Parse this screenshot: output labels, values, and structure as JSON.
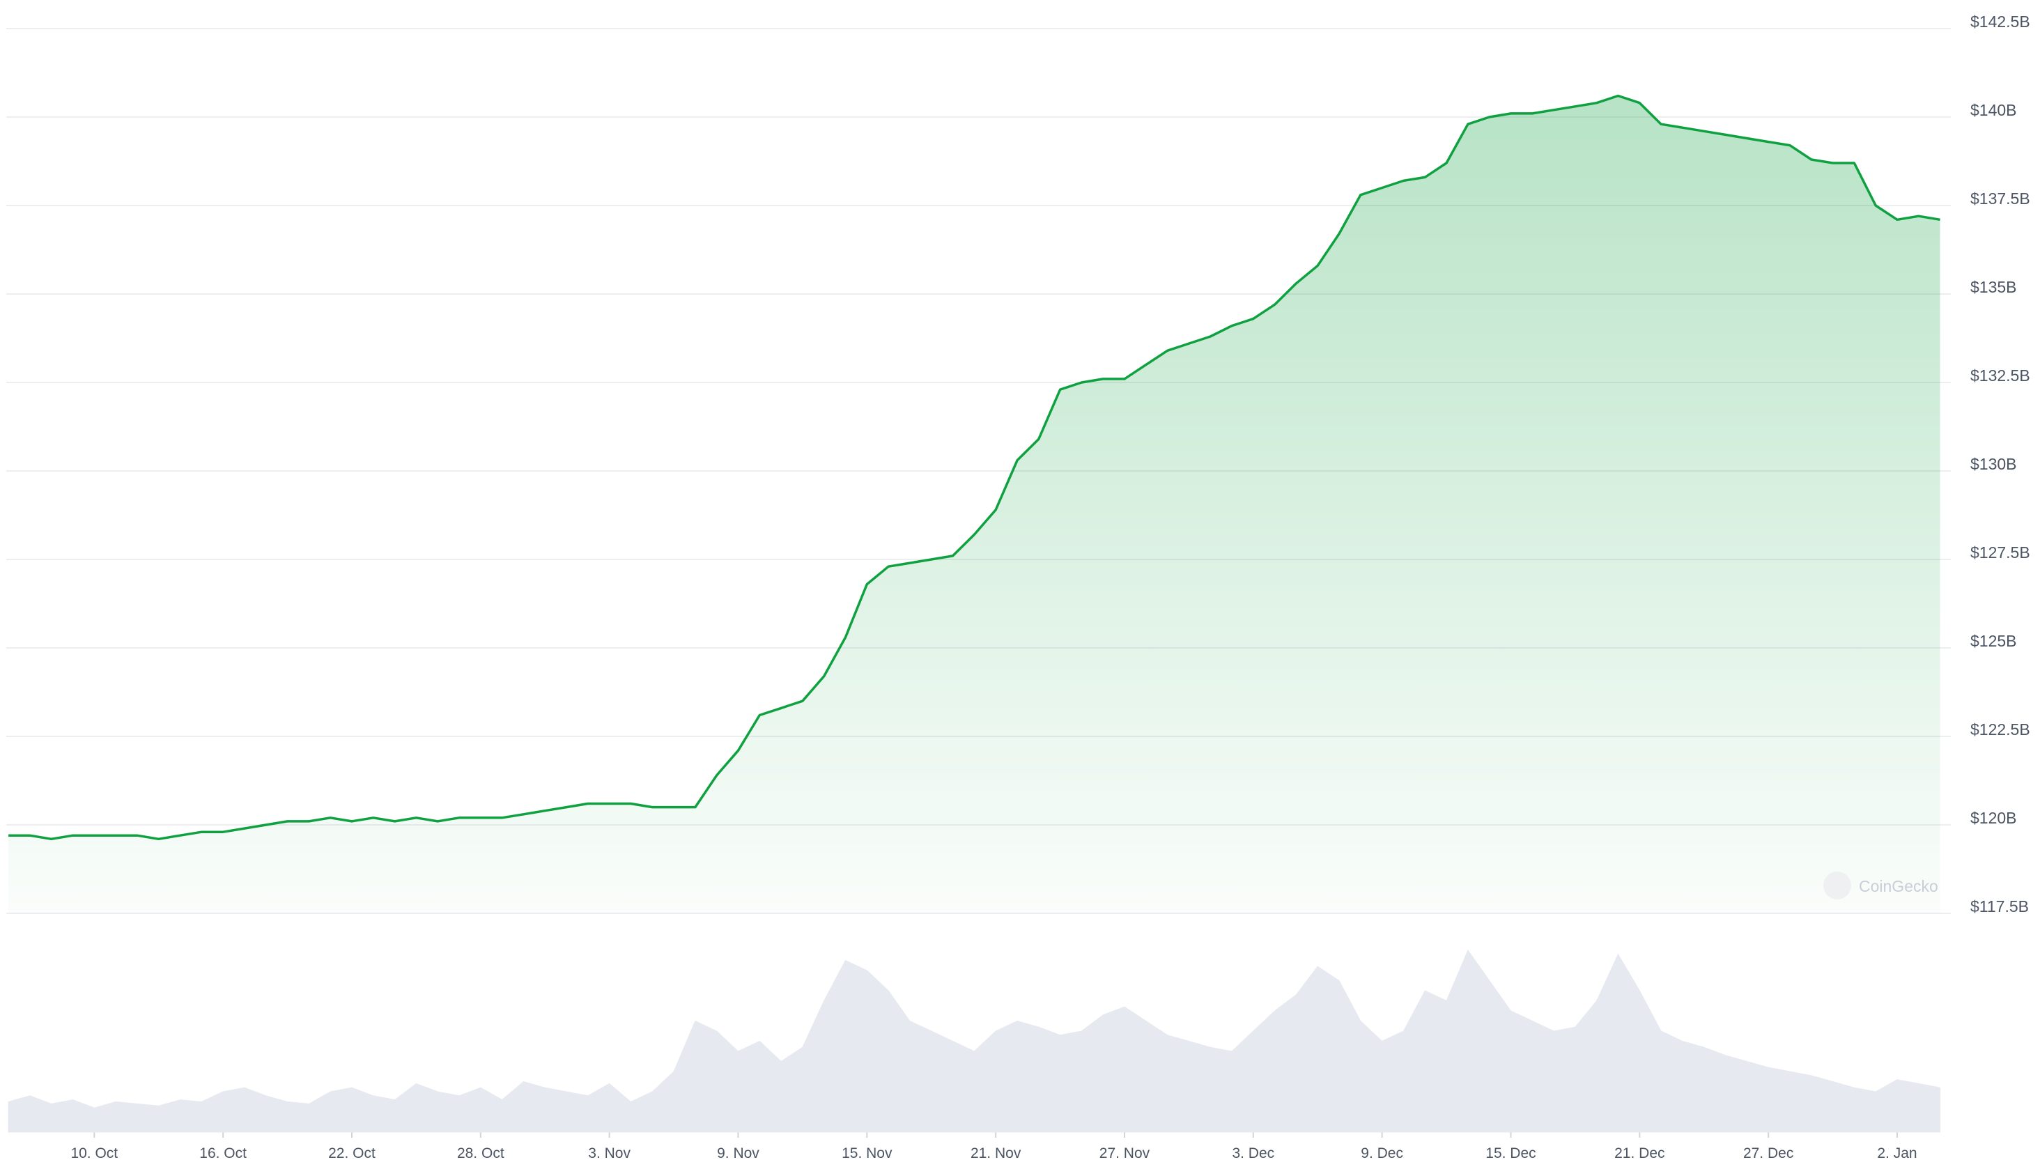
{
  "chart_data": {
    "type": "line",
    "x": [
      -4,
      -3,
      -2,
      -1,
      0,
      1,
      2,
      3,
      4,
      5,
      6,
      7,
      8,
      9,
      10,
      11,
      12,
      13,
      14,
      15,
      16,
      17,
      18,
      19,
      20,
      21,
      22,
      23,
      24,
      25,
      26,
      27,
      28,
      29,
      30,
      31,
      32,
      33,
      34,
      35,
      36,
      37,
      38,
      39,
      40,
      41,
      42,
      43,
      44,
      45,
      46,
      47,
      48,
      49,
      50,
      51,
      52,
      53,
      54,
      55,
      56,
      57,
      58,
      59,
      60,
      61,
      62,
      63,
      64,
      65,
      66,
      67,
      68,
      69,
      70,
      71,
      72,
      73,
      74,
      75,
      76,
      77,
      78,
      79,
      80,
      81,
      82,
      83,
      84,
      85,
      86
    ],
    "series": [
      {
        "color": "#0fa140",
        "values": [
          119.7,
          119.7,
          119.6,
          119.7,
          119.7,
          119.7,
          119.7,
          119.6,
          119.7,
          119.8,
          119.8,
          119.9,
          120.0,
          120.1,
          120.1,
          120.2,
          120.1,
          120.2,
          120.1,
          120.2,
          120.1,
          120.2,
          120.2,
          120.2,
          120.3,
          120.4,
          120.5,
          120.6,
          120.6,
          120.6,
          120.5,
          120.5,
          120.5,
          121.4,
          122.1,
          123.1,
          123.3,
          123.5,
          124.2,
          125.3,
          126.8,
          127.3,
          127.4,
          127.5,
          127.6,
          128.2,
          128.9,
          130.3,
          130.9,
          132.3,
          132.5,
          132.6,
          132.6,
          133.0,
          133.4,
          133.6,
          133.8,
          134.1,
          134.3,
          134.7,
          135.3,
          135.8,
          136.7,
          137.8,
          138.0,
          138.2,
          138.3,
          138.7,
          139.8,
          140.0,
          140.1,
          140.1,
          140.2,
          140.3,
          140.4,
          140.6,
          140.4,
          139.8,
          139.7,
          139.6,
          139.5,
          139.4,
          139.3,
          139.2,
          138.8,
          138.7,
          138.7,
          137.5,
          137.1,
          137.2,
          137.1
        ]
      },
      {
        "axis": "y2",
        "color": "#e6e9ef",
        "values": [
          15,
          18,
          14,
          16,
          12,
          15,
          14,
          13,
          16,
          15,
          20,
          22,
          18,
          15,
          14,
          20,
          22,
          18,
          16,
          24,
          20,
          18,
          22,
          16,
          25,
          22,
          20,
          18,
          24,
          15,
          20,
          30,
          55,
          50,
          40,
          45,
          35,
          42,
          65,
          85,
          80,
          70,
          55,
          50,
          45,
          40,
          50,
          55,
          52,
          48,
          50,
          58,
          62,
          55,
          48,
          45,
          42,
          40,
          50,
          60,
          68,
          82,
          75,
          55,
          45,
          50,
          70,
          65,
          90,
          75,
          60,
          55,
          50,
          52,
          65,
          88,
          70,
          50,
          45,
          42,
          38,
          35,
          32,
          30,
          28,
          25,
          22,
          20,
          26,
          24,
          22
        ]
      }
    ],
    "xlim": [
      -4.1,
      86.5
    ],
    "xticks": [
      {
        "value": 0,
        "label": "10. Oct"
      },
      {
        "value": 6,
        "label": "16. Oct"
      },
      {
        "value": 12,
        "label": "22. Oct"
      },
      {
        "value": 18,
        "label": "28. Oct"
      },
      {
        "value": 24,
        "label": "3. Nov"
      },
      {
        "value": 30,
        "label": "9. Nov"
      },
      {
        "value": 36,
        "label": "15. Nov"
      },
      {
        "value": 42,
        "label": "21. Nov"
      },
      {
        "value": 48,
        "label": "27. Nov"
      },
      {
        "value": 54,
        "label": "3. Dec"
      },
      {
        "value": 60,
        "label": "9. Dec"
      },
      {
        "value": 66,
        "label": "15. Dec"
      },
      {
        "value": 72,
        "label": "21. Dec"
      },
      {
        "value": 78,
        "label": "27. Dec"
      },
      {
        "value": 84,
        "label": "2. Jan"
      }
    ],
    "ylim": [
      117.5,
      142.5
    ],
    "yticks": [
      {
        "value": 117.5,
        "label": "$117.5B"
      },
      {
        "value": 120,
        "label": "$120B"
      },
      {
        "value": 122.5,
        "label": "$122.5B"
      },
      {
        "value": 125,
        "label": "$125B"
      },
      {
        "value": 127.5,
        "label": "$127.5B"
      },
      {
        "value": 130,
        "label": "$130B"
      },
      {
        "value": 132.5,
        "label": "$132.5B"
      },
      {
        "value": 135,
        "label": "$135B"
      },
      {
        "value": 137.5,
        "label": "$137.5B"
      },
      {
        "value": 140,
        "label": "$140B"
      },
      {
        "value": 142.5,
        "label": "$142.5B"
      }
    ],
    "y2lim": [
      0,
      100
    ],
    "grid": true,
    "watermark": "CoinGecko"
  }
}
